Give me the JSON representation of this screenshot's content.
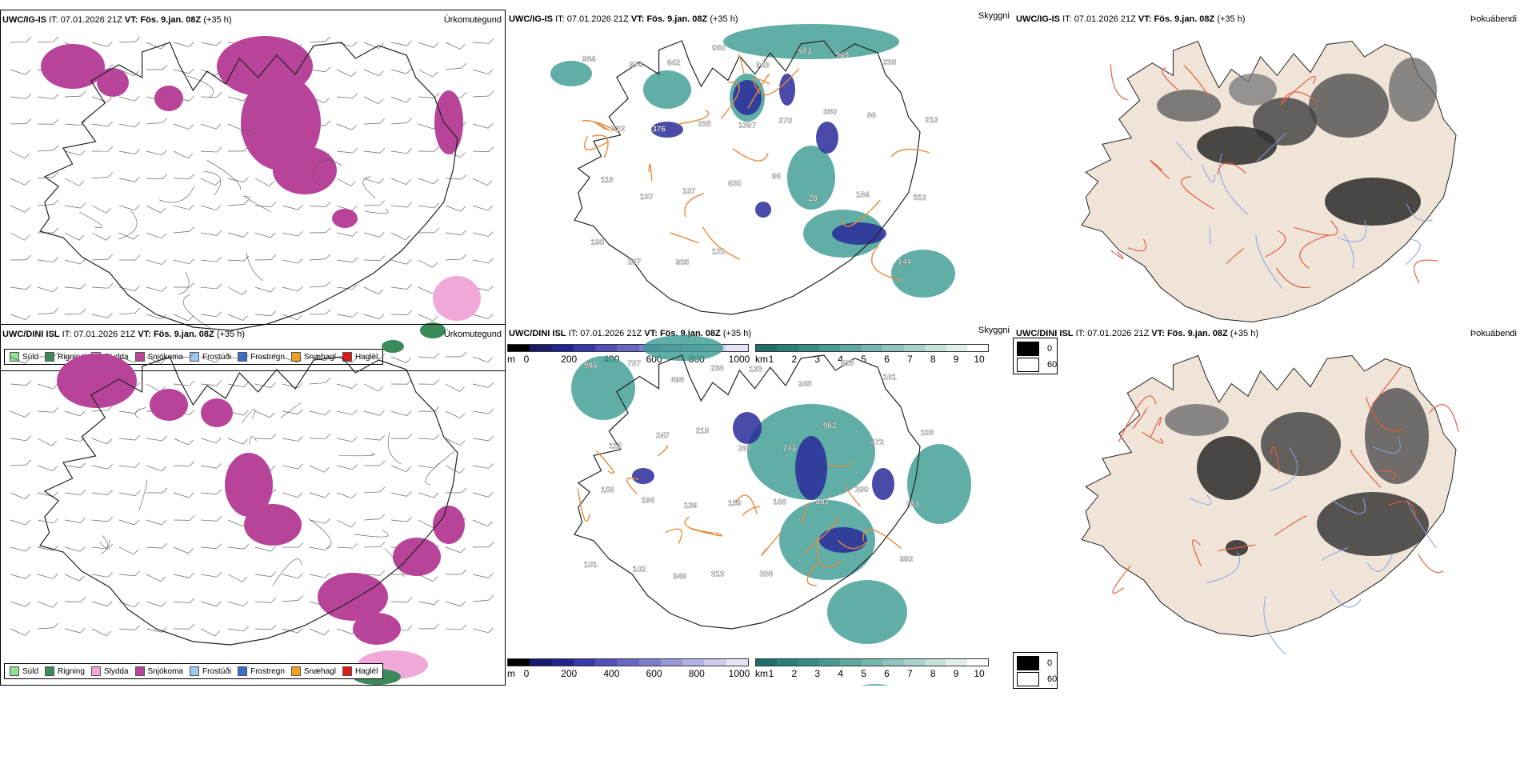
{
  "rows": [
    {
      "model": "UWC/IG-IS",
      "it_label": "IT:",
      "it_value": "07.01.2026 21Z",
      "vt_label": "VT:",
      "vt_value": "Fös. 9.jan. 08Z",
      "lead": "(+35 h)"
    },
    {
      "model": "UWC/DINI ISL",
      "it_label": "IT:",
      "it_value": "07.01.2026 21Z",
      "vt_label": "VT:",
      "vt_value": "Fös. 9.jan. 08Z",
      "lead": "(+35 h)"
    }
  ],
  "panel_names": {
    "precip": "Úrkomutegund",
    "cloud": "Skyggni",
    "fog": "Þokuábendi"
  },
  "precip_legend": [
    {
      "label": "Súld",
      "color": "#8fe08f"
    },
    {
      "label": "Rigning",
      "color": "#3a8a5a"
    },
    {
      "label": "Slydda",
      "color": "#f0a8d8"
    },
    {
      "label": "Snjókoma",
      "color": "#b8449a"
    },
    {
      "label": "Frostúði",
      "color": "#9ec8f0"
    },
    {
      "label": "Frostregn",
      "color": "#3a6ec8"
    },
    {
      "label": "Snæhagl",
      "color": "#f0a020"
    },
    {
      "label": "Haglél",
      "color": "#e01818"
    }
  ],
  "cloudbase_bar": {
    "unit": "m",
    "ticks": [
      "0",
      "200",
      "400",
      "600",
      "800",
      "1000"
    ],
    "colors": [
      "#000000",
      "#1a1a6e",
      "#232390",
      "#3838a8",
      "#5050b8",
      "#6868c4",
      "#7e7ece",
      "#9898d8",
      "#b2b2e2",
      "#ccccec",
      "#e4e4f6"
    ]
  },
  "visibility_bar": {
    "unit": "km",
    "ticks": [
      "1",
      "2",
      "3",
      "4",
      "5",
      "6",
      "7",
      "8",
      "9",
      "10"
    ],
    "colors": [
      "#1f6e6a",
      "#2a7e78",
      "#388c86",
      "#4a9a94",
      "#5ea8a2",
      "#76b6b0",
      "#90c4be",
      "#aad2cc",
      "#c4e0da",
      "#e0eeec",
      "#ffffff"
    ]
  },
  "fog_legend": {
    "values": [
      "0",
      "60"
    ],
    "colors": [
      "#000000",
      "#ffffff"
    ]
  },
  "cloudbase_labels_top": [
    "984",
    "974",
    "942",
    "960",
    "943",
    "973",
    "969",
    "236",
    "212",
    "322",
    "376",
    "235",
    "1397",
    "270",
    "380",
    "86",
    "312",
    "118",
    "137",
    "107",
    "630",
    "96",
    "28",
    "184",
    "144",
    "190",
    "287",
    "935",
    "131"
  ],
  "cloudbase_labels_bottom": [
    "996",
    "737",
    "698",
    "238",
    "133",
    "248",
    "825",
    "161",
    "108",
    "112",
    "247",
    "219",
    "267",
    "743",
    "962",
    "472",
    "733",
    "156",
    "196",
    "139",
    "159",
    "168",
    "802",
    "290",
    "992",
    "101",
    "102",
    "949",
    "313",
    "338"
  ],
  "colors": {
    "land_fill_fog": "#f0e4d8",
    "coast": "#222222",
    "roads": "#e88a3a",
    "roads_fog": "#e06040",
    "rivers_fog": "#8aa0e8",
    "snow": "#b8449a",
    "rain": "#3a8a5a",
    "sleet": "#f0a8d8",
    "teal": "#3a9a90",
    "navy": "#2a2a9a"
  }
}
